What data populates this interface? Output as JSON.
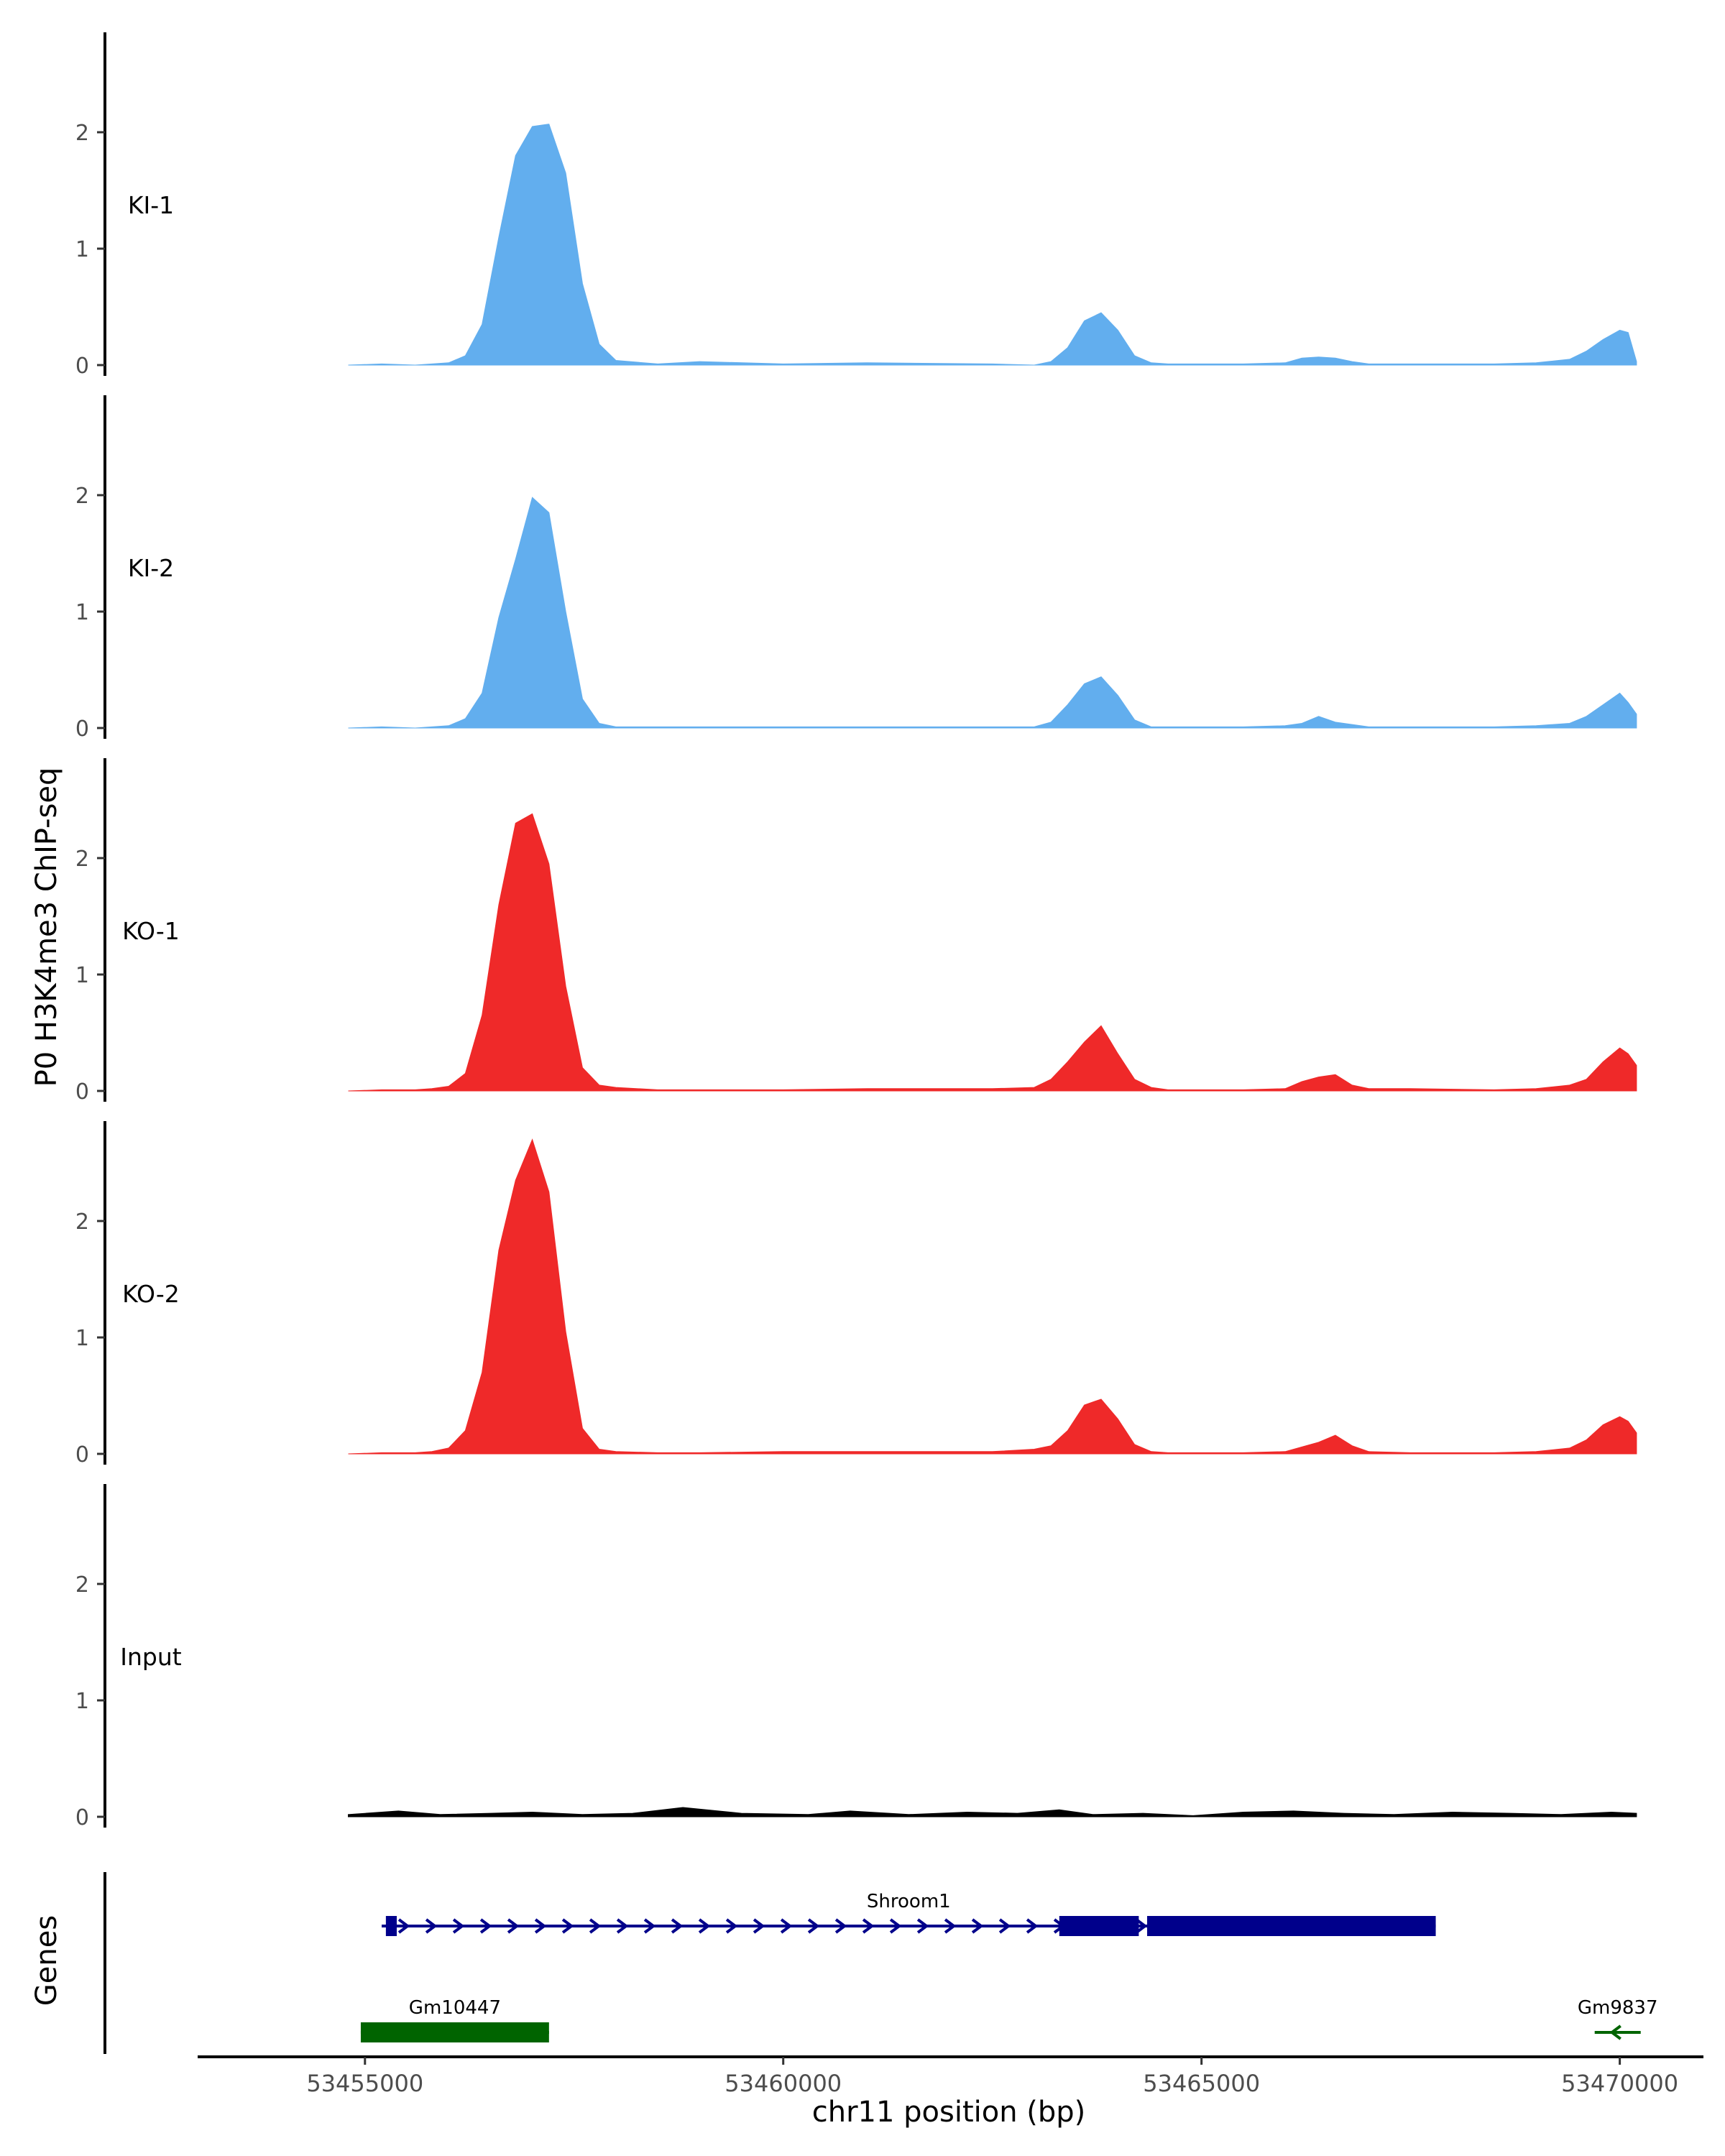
{
  "chart_data": {
    "type": "area",
    "ylabel": "P0 H3K4me3 ChIP-seq",
    "xlabel": "chr11 position (bp)",
    "genes_label": "Genes",
    "chrom": "chr11",
    "xlim": [
      53453000,
      53471000
    ],
    "ylim": [
      0,
      2.8
    ],
    "y_ticks": [
      0,
      1,
      2
    ],
    "x_ticks": [
      53455000,
      53460000,
      53465000,
      53470000
    ],
    "colors": {
      "KI": "#62aeee",
      "KO": "#ef2929",
      "Input": "#000000",
      "gene_blue": "#00008b",
      "gene_green": "#006400"
    },
    "tracks": [
      {
        "label": "KI-1",
        "color": "#62aeee",
        "x": [
          53454800,
          53455200,
          53455600,
          53455800,
          53456000,
          53456200,
          53456400,
          53456600,
          53456800,
          53457000,
          53457200,
          53457400,
          53457600,
          53457800,
          53458000,
          53458500,
          53459000,
          53460000,
          53461000,
          53462500,
          53463000,
          53463200,
          53463400,
          53463600,
          53463800,
          53464000,
          53464200,
          53464400,
          53464600,
          53465500,
          53466000,
          53466200,
          53466400,
          53466600,
          53466800,
          53467000,
          53467500,
          53468500,
          53469000,
          53469400,
          53469600,
          53469800,
          53470000,
          53470100,
          53470200
        ],
        "y": [
          0,
          0.01,
          0,
          0.01,
          0.02,
          0.08,
          0.35,
          1.1,
          1.8,
          2.05,
          2.07,
          1.65,
          0.7,
          0.18,
          0.04,
          0.01,
          0.03,
          0.01,
          0.02,
          0.01,
          0,
          0.03,
          0.15,
          0.38,
          0.45,
          0.3,
          0.08,
          0.02,
          0.01,
          0.01,
          0.02,
          0.06,
          0.07,
          0.06,
          0.03,
          0.01,
          0.01,
          0.01,
          0.02,
          0.05,
          0.12,
          0.22,
          0.3,
          0.28,
          0.03
        ]
      },
      {
        "label": "KI-2",
        "color": "#62aeee",
        "x": [
          53454800,
          53455200,
          53455600,
          53455800,
          53456000,
          53456200,
          53456400,
          53456600,
          53456800,
          53457000,
          53457200,
          53457400,
          53457600,
          53457800,
          53458000,
          53458500,
          53459000,
          53460000,
          53461000,
          53462500,
          53463000,
          53463200,
          53463400,
          53463600,
          53463800,
          53464000,
          53464200,
          53464400,
          53464600,
          53465500,
          53466000,
          53466200,
          53466400,
          53466600,
          53466800,
          53467000,
          53467500,
          53468500,
          53469000,
          53469400,
          53469600,
          53469800,
          53470000,
          53470100,
          53470200
        ],
        "y": [
          0,
          0.01,
          0,
          0.01,
          0.02,
          0.08,
          0.3,
          0.95,
          1.45,
          1.98,
          1.85,
          1.0,
          0.25,
          0.04,
          0.01,
          0.01,
          0.01,
          0.01,
          0.01,
          0.01,
          0.01,
          0.05,
          0.2,
          0.38,
          0.44,
          0.28,
          0.07,
          0.01,
          0.01,
          0.01,
          0.02,
          0.04,
          0.1,
          0.05,
          0.03,
          0.01,
          0.01,
          0.01,
          0.02,
          0.04,
          0.1,
          0.2,
          0.3,
          0.22,
          0.12
        ]
      },
      {
        "label": "KO-1",
        "color": "#ef2929",
        "x": [
          53454800,
          53455200,
          53455600,
          53455800,
          53456000,
          53456200,
          53456400,
          53456600,
          53456800,
          53457000,
          53457200,
          53457400,
          53457600,
          53457800,
          53458000,
          53458500,
          53459000,
          53460000,
          53461000,
          53462500,
          53463000,
          53463200,
          53463400,
          53463600,
          53463800,
          53464000,
          53464200,
          53464400,
          53464600,
          53465500,
          53466000,
          53466200,
          53466400,
          53466600,
          53466800,
          53467000,
          53467500,
          53468500,
          53469000,
          53469400,
          53469600,
          53469800,
          53470000,
          53470100,
          53470200
        ],
        "y": [
          0,
          0.01,
          0.01,
          0.02,
          0.04,
          0.15,
          0.65,
          1.6,
          2.3,
          2.38,
          1.95,
          0.9,
          0.2,
          0.05,
          0.03,
          0.01,
          0.01,
          0.01,
          0.02,
          0.02,
          0.03,
          0.1,
          0.25,
          0.42,
          0.56,
          0.32,
          0.1,
          0.03,
          0.01,
          0.01,
          0.02,
          0.08,
          0.12,
          0.14,
          0.05,
          0.02,
          0.02,
          0.01,
          0.02,
          0.05,
          0.1,
          0.25,
          0.37,
          0.32,
          0.22
        ]
      },
      {
        "label": "KO-2",
        "color": "#ef2929",
        "x": [
          53454800,
          53455200,
          53455600,
          53455800,
          53456000,
          53456200,
          53456400,
          53456600,
          53456800,
          53457000,
          53457200,
          53457400,
          53457600,
          53457800,
          53458000,
          53458500,
          53459000,
          53460000,
          53461000,
          53462500,
          53463000,
          53463200,
          53463400,
          53463600,
          53463800,
          53464000,
          53464200,
          53464400,
          53464600,
          53465500,
          53466000,
          53466200,
          53466400,
          53466600,
          53466800,
          53467000,
          53467500,
          53468500,
          53469000,
          53469400,
          53469600,
          53469800,
          53470000,
          53470100,
          53470200
        ],
        "y": [
          0,
          0.01,
          0.01,
          0.02,
          0.05,
          0.2,
          0.7,
          1.75,
          2.35,
          2.7,
          2.25,
          1.05,
          0.22,
          0.04,
          0.02,
          0.01,
          0.01,
          0.02,
          0.02,
          0.02,
          0.04,
          0.07,
          0.2,
          0.42,
          0.47,
          0.3,
          0.08,
          0.02,
          0.01,
          0.01,
          0.02,
          0.06,
          0.1,
          0.16,
          0.07,
          0.02,
          0.01,
          0.01,
          0.02,
          0.05,
          0.12,
          0.25,
          0.32,
          0.28,
          0.18
        ]
      },
      {
        "label": "Input",
        "color": "#000000",
        "x": [
          53454800,
          53455400,
          53455900,
          53456500,
          53457000,
          53457600,
          53458200,
          53458800,
          53459500,
          53460300,
          53460800,
          53461500,
          53462200,
          53462800,
          53463300,
          53463700,
          53464300,
          53464900,
          53465500,
          53466100,
          53466700,
          53467300,
          53468000,
          53468700,
          53469300,
          53469900,
          53470200
        ],
        "y": [
          0.02,
          0.05,
          0.02,
          0.03,
          0.04,
          0.02,
          0.03,
          0.08,
          0.03,
          0.02,
          0.05,
          0.02,
          0.04,
          0.03,
          0.06,
          0.02,
          0.03,
          0.01,
          0.04,
          0.05,
          0.03,
          0.02,
          0.04,
          0.03,
          0.02,
          0.04,
          0.03
        ]
      }
    ],
    "genes": [
      {
        "name": "Shroom1",
        "start": 53455200,
        "end": 53467800,
        "strand": "+",
        "color": "#00008b",
        "row": 0,
        "exons": [
          [
            53455250,
            53455380
          ],
          [
            53463300,
            53464250
          ],
          [
            53464350,
            53467800
          ]
        ]
      },
      {
        "name": "Gm10447",
        "start": 53454950,
        "end": 53457200,
        "strand": "+",
        "color": "#006400",
        "row": 1,
        "exons": [
          [
            53454950,
            53457200
          ]
        ]
      },
      {
        "name": "Gm9837",
        "start": 53469700,
        "end": 53470250,
        "strand": "-",
        "color": "#006400",
        "row": 1,
        "exons": []
      }
    ]
  }
}
